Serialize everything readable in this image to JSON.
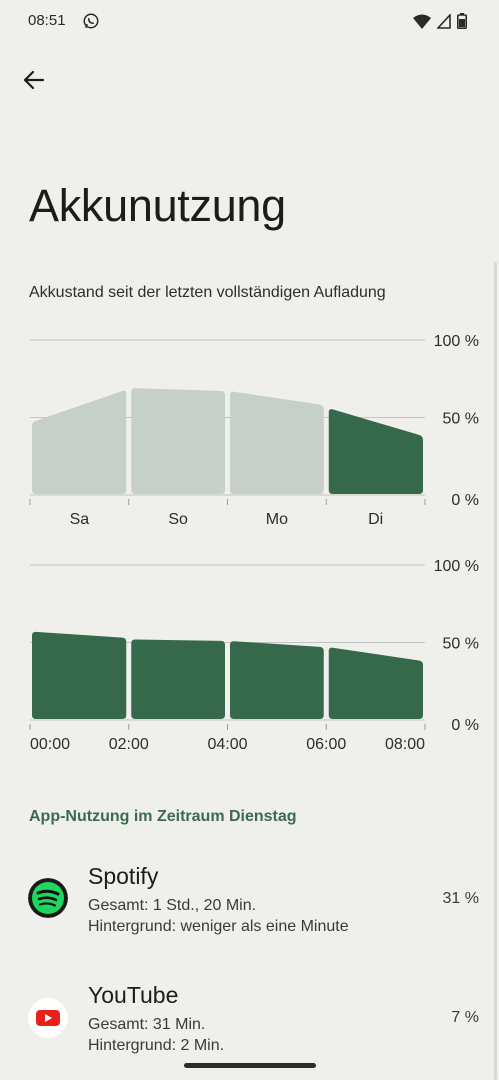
{
  "status_bar": {
    "time": "08:51"
  },
  "page": {
    "title": "Akkunutzung",
    "subtitle": "Akkustand seit der letzten vollständigen Aufladung"
  },
  "chart_data": [
    {
      "type": "area",
      "categories": [
        "Sa",
        "So",
        "Mo",
        "Di"
      ],
      "ylim": [
        0,
        100
      ],
      "yticks": [
        "100 %",
        "50 %",
        "0 %"
      ],
      "segments": [
        {
          "start": 47,
          "end": 68,
          "highlighted": false
        },
        {
          "start": 69,
          "end": 67,
          "highlighted": false
        },
        {
          "start": 67,
          "end": 58,
          "highlighted": false
        },
        {
          "start": 56,
          "end": 38,
          "highlighted": true
        }
      ]
    },
    {
      "type": "area",
      "categories": [
        "00:00",
        "02:00",
        "04:00",
        "06:00",
        "08:00"
      ],
      "ylim": [
        0,
        100
      ],
      "yticks": [
        "100 %",
        "50 %",
        "0 %"
      ],
      "segments": [
        {
          "start": 57,
          "end": 53,
          "highlighted": true
        },
        {
          "start": 52,
          "end": 51,
          "highlighted": true
        },
        {
          "start": 51,
          "end": 47,
          "highlighted": true
        },
        {
          "start": 47,
          "end": 38,
          "highlighted": true
        }
      ]
    }
  ],
  "usage": {
    "section_title": "App-Nutzung im Zeitraum Dienstag",
    "apps": [
      {
        "name": "Spotify",
        "total": "Gesamt: 1 Std., 20 Min.",
        "background": "Hintergrund: weniger als eine Minute",
        "percent": "31 %",
        "icon": "spotify-icon"
      },
      {
        "name": "YouTube",
        "total": "Gesamt: 31 Min.",
        "background": "Hintergrund: 2 Min.",
        "percent": "7 %",
        "icon": "youtube-icon"
      }
    ]
  },
  "colors": {
    "accent": "#3b6a4e",
    "bar_dark": "#36684c",
    "bar_light": "#c7d0c8",
    "background": "#eff0eb"
  }
}
